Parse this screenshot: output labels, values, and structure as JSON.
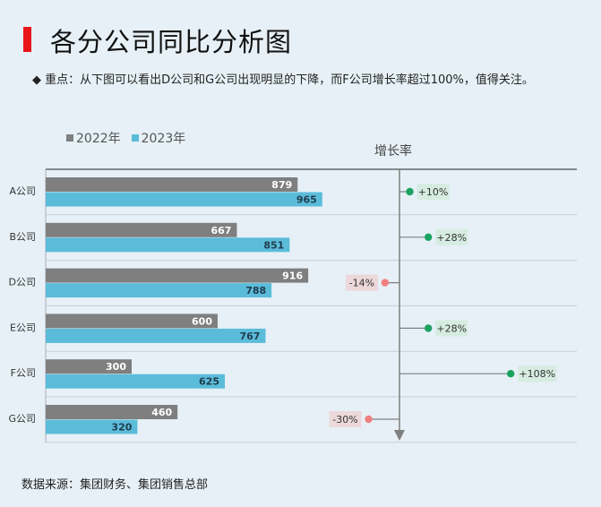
{
  "title": "各分公司同比分析图",
  "note": {
    "bullet": "◆",
    "text": "重点：从下图可以看出D公司和G公司出现明显的下降，而F公司增长率超过100%，值得关注。"
  },
  "colors": {
    "series_2022": "#7f7f7f",
    "series_2023": "#5bbcd9",
    "positive_dot": "#1aa260",
    "negative_dot": "#f08080",
    "positive_bg": "#d6ece2",
    "negative_bg": "#ecd8da",
    "accent": "#e8151b"
  },
  "source": "数据来源：集团财务、集团销售总部",
  "chart_data": {
    "type": "bar",
    "orientation": "horizontal",
    "categories": [
      "A公司",
      "B公司",
      "D公司",
      "E公司",
      "F公司",
      "G公司"
    ],
    "series": [
      {
        "name": "2022年",
        "values": [
          879,
          667,
          916,
          600,
          300,
          460
        ]
      },
      {
        "name": "2023年",
        "values": [
          965,
          851,
          788,
          767,
          625,
          320
        ]
      }
    ],
    "xlim": [
      0,
      1000
    ],
    "growth": {
      "title": "增长率",
      "values": [
        10,
        28,
        -14,
        28,
        108,
        -30
      ],
      "labels": [
        "+10%",
        "+28%",
        "-14%",
        "+28%",
        "+108%",
        "-30%"
      ]
    },
    "legend": "top-left"
  }
}
